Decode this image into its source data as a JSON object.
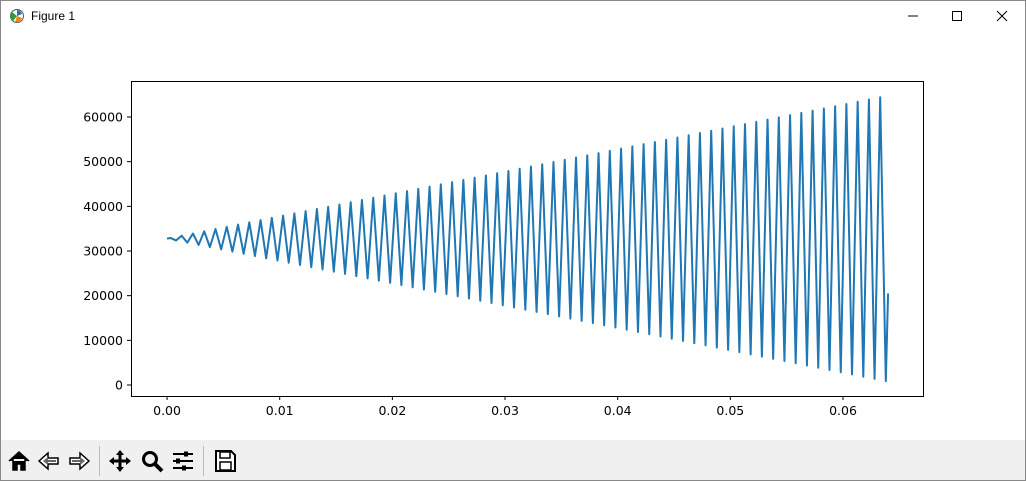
{
  "window": {
    "title": "Figure 1"
  },
  "chart_data": {
    "type": "line",
    "color": "#1f77b4",
    "x": [
      0,
      0.0003,
      0.0008,
      0.0013,
      0.0018,
      0.0023,
      0.0028,
      0.0033,
      0.0038,
      0.0043,
      0.0048,
      0.0053,
      0.0058,
      0.0063,
      0.0068,
      0.0073,
      0.0078,
      0.0083,
      0.0088,
      0.0093,
      0.0098,
      0.0103,
      0.0108,
      0.0113,
      0.0118,
      0.0123,
      0.0128,
      0.0133,
      0.0138,
      0.0143,
      0.0148,
      0.0153,
      0.0158,
      0.0163,
      0.0168,
      0.0173,
      0.0178,
      0.0183,
      0.0188,
      0.0193,
      0.0198,
      0.0203,
      0.0208,
      0.0213,
      0.0218,
      0.0223,
      0.0228,
      0.0233,
      0.0238,
      0.0243,
      0.0248,
      0.0253,
      0.0258,
      0.0263,
      0.0268,
      0.0273,
      0.0278,
      0.0283,
      0.0288,
      0.0293,
      0.0298,
      0.0303,
      0.0308,
      0.0313,
      0.0318,
      0.0323,
      0.0328,
      0.0333,
      0.0338,
      0.0343,
      0.0348,
      0.0353,
      0.0358,
      0.0363,
      0.0368,
      0.0373,
      0.0378,
      0.0383,
      0.0388,
      0.0393,
      0.0398,
      0.0403,
      0.0408,
      0.0413,
      0.0418,
      0.0423,
      0.0428,
      0.0433,
      0.0438,
      0.0443,
      0.0448,
      0.0453,
      0.0458,
      0.0463,
      0.0468,
      0.0473,
      0.0478,
      0.0483,
      0.0488,
      0.0493,
      0.0498,
      0.0503,
      0.0508,
      0.0513,
      0.0518,
      0.0523,
      0.0528,
      0.0533,
      0.0538,
      0.0543,
      0.0548,
      0.0553,
      0.0558,
      0.0563,
      0.0568,
      0.0573,
      0.0578,
      0.0583,
      0.0588,
      0.0593,
      0.0598,
      0.0603,
      0.0608,
      0.0613,
      0.0618,
      0.0623,
      0.0628,
      0.0633,
      0.0638,
      0.064
    ],
    "values": [
      32768,
      32918,
      32368,
      33418,
      31868,
      33918,
      31368,
      34418,
      30868,
      34918,
      30368,
      35418,
      29868,
      35918,
      29368,
      36418,
      28868,
      36918,
      28368,
      37418,
      27868,
      37918,
      27368,
      38418,
      26868,
      38918,
      26368,
      39418,
      25868,
      39918,
      25368,
      40418,
      24868,
      40918,
      24368,
      41418,
      23868,
      41918,
      23368,
      42418,
      22868,
      42918,
      22368,
      43418,
      21868,
      43918,
      21368,
      44418,
      20868,
      44918,
      20368,
      45418,
      19868,
      45918,
      19368,
      46418,
      18868,
      46918,
      18368,
      47418,
      17868,
      47918,
      17368,
      48418,
      16868,
      48918,
      16368,
      49418,
      15868,
      49918,
      15368,
      50418,
      14868,
      50918,
      14368,
      51418,
      13868,
      51918,
      13368,
      52418,
      12868,
      52918,
      12368,
      53418,
      11868,
      53918,
      11368,
      54418,
      10868,
      54918,
      10368,
      55418,
      9868,
      55918,
      9368,
      56418,
      8868,
      56918,
      8368,
      57418,
      7868,
      57918,
      7368,
      58418,
      6868,
      58918,
      6368,
      59418,
      5868,
      59918,
      5368,
      60418,
      4868,
      60918,
      4368,
      61418,
      3868,
      61918,
      3368,
      62418,
      2868,
      62918,
      2368,
      63418,
      1868,
      63918,
      1368,
      64418,
      868,
      20500
    ],
    "xlim": [
      -0.0032,
      0.0671
    ],
    "ylim": [
      -2460,
      68060
    ],
    "xticks": [
      {
        "value": 0,
        "label": "0.00"
      },
      0.01,
      0.02,
      0.03,
      0.04,
      0.05,
      0.06
    ],
    "yticks": [
      0,
      10000,
      20000,
      30000,
      40000,
      50000,
      60000
    ]
  }
}
